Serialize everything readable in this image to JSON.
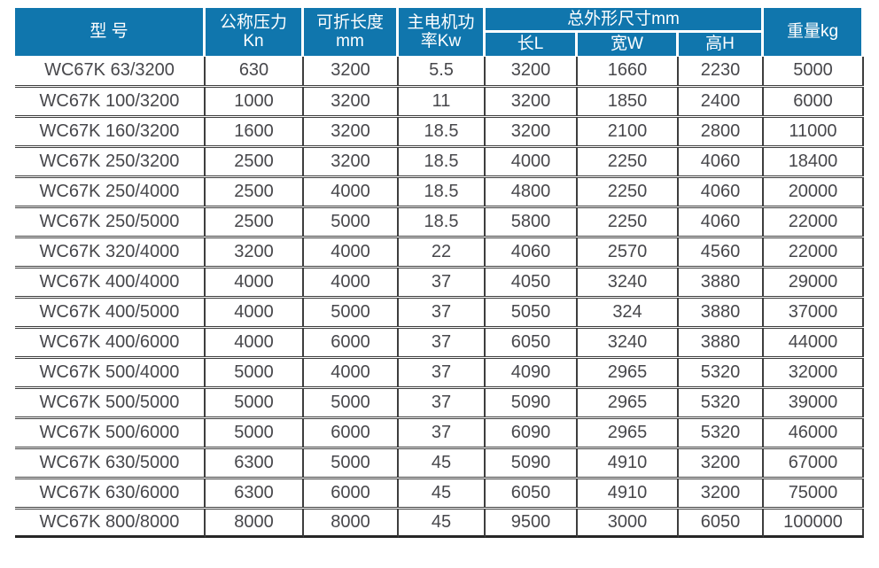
{
  "table": {
    "header": {
      "model": "型 号",
      "pressure": "公称压力\nKn",
      "fold_length": "可折长度\nmm",
      "motor_power": "主电机功\n率Kw",
      "dimensions_group": "总外形尺寸mm",
      "dim_length": "长L",
      "dim_width": "宽W",
      "dim_height": "高H",
      "weight": "重量kg"
    },
    "column_keys": [
      "model",
      "pressure-kn",
      "fold-length-mm",
      "motor-power-kw",
      "length-l",
      "width-w",
      "height-h",
      "weight-kg"
    ],
    "rows": [
      [
        "WC67K 63/3200",
        "630",
        "3200",
        "5.5",
        "3200",
        "1660",
        "2230",
        "5000"
      ],
      [
        "WC67K 100/3200",
        "1000",
        "3200",
        "11",
        "3200",
        "1850",
        "2400",
        "6000"
      ],
      [
        "WC67K 160/3200",
        "1600",
        "3200",
        "18.5",
        "3200",
        "2100",
        "2800",
        "11000"
      ],
      [
        "WC67K 250/3200",
        "2500",
        "3200",
        "18.5",
        "4000",
        "2250",
        "4060",
        "18400"
      ],
      [
        "WC67K 250/4000",
        "2500",
        "4000",
        "18.5",
        "4800",
        "2250",
        "4060",
        "20000"
      ],
      [
        "WC67K 250/5000",
        "2500",
        "5000",
        "18.5",
        "5800",
        "2250",
        "4060",
        "22000"
      ],
      [
        "WC67K 320/4000",
        "3200",
        "4000",
        "22",
        "4060",
        "2570",
        "4560",
        "22000"
      ],
      [
        "WC67K 400/4000",
        "4000",
        "4000",
        "37",
        "4050",
        "3240",
        "3880",
        "29000"
      ],
      [
        "WC67K 400/5000",
        "4000",
        "5000",
        "37",
        "5050",
        "324",
        "3880",
        "37000"
      ],
      [
        "WC67K 400/6000",
        "4000",
        "6000",
        "37",
        "6050",
        "3240",
        "3880",
        "44000"
      ],
      [
        "WC67K 500/4000",
        "5000",
        "4000",
        "37",
        "4090",
        "2965",
        "5320",
        "32000"
      ],
      [
        "WC67K 500/5000",
        "5000",
        "5000",
        "37",
        "5090",
        "2965",
        "5320",
        "39000"
      ],
      [
        "WC67K 500/6000",
        "5000",
        "6000",
        "37",
        "6090",
        "2965",
        "5320",
        "46000"
      ],
      [
        "WC67K 630/5000",
        "6300",
        "5000",
        "45",
        "5090",
        "4910",
        "3200",
        "67000"
      ],
      [
        "WC67K 630/6000",
        "6300",
        "6000",
        "45",
        "6050",
        "4910",
        "3200",
        "75000"
      ],
      [
        "WC67K 800/8000",
        "8000",
        "8000",
        "45",
        "9500",
        "3000",
        "6050",
        "100000"
      ]
    ]
  },
  "colors": {
    "header_bg": "#1076ad",
    "header_text": "#ffffff",
    "body_text": "#47474b",
    "grid_line": "#3e3e3e",
    "bottom_rule": "#262626"
  }
}
